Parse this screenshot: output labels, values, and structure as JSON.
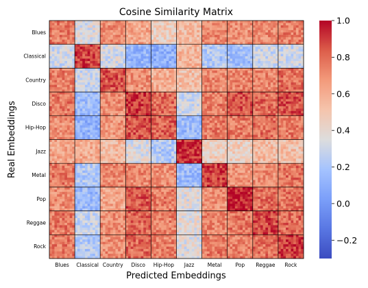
{
  "chart_data": {
    "type": "heatmap",
    "title": "Cosine Similarity Matrix",
    "xlabel": "Predicted Embeddings",
    "ylabel": "Real Embeddings",
    "x_categories": [
      "Blues",
      "Classical",
      "Country",
      "Disco",
      "Hip-Hop",
      "Jazz",
      "Metal",
      "Pop",
      "Reggae",
      "Rock"
    ],
    "y_categories": [
      "Blues",
      "Classical",
      "Country",
      "Disco",
      "Hip-Hop",
      "Jazz",
      "Metal",
      "Pop",
      "Reggae",
      "Rock"
    ],
    "cells_per_block": 10,
    "block_mean_values": [
      [
        0.75,
        0.35,
        0.7,
        0.62,
        0.45,
        0.55,
        0.72,
        0.7,
        0.72,
        0.74
      ],
      [
        0.3,
        0.88,
        0.32,
        0.12,
        0.1,
        0.58,
        0.22,
        0.18,
        0.3,
        0.3
      ],
      [
        0.74,
        0.3,
        0.84,
        0.7,
        0.6,
        0.52,
        0.72,
        0.72,
        0.72,
        0.78
      ],
      [
        0.76,
        0.15,
        0.7,
        0.9,
        0.8,
        0.3,
        0.75,
        0.85,
        0.8,
        0.85
      ],
      [
        0.7,
        0.12,
        0.68,
        0.84,
        0.82,
        0.15,
        0.75,
        0.75,
        0.78,
        0.75
      ],
      [
        0.62,
        0.6,
        0.55,
        0.35,
        0.22,
        0.92,
        0.45,
        0.45,
        0.55,
        0.52
      ],
      [
        0.76,
        0.22,
        0.72,
        0.72,
        0.7,
        0.15,
        0.9,
        0.68,
        0.7,
        0.78
      ],
      [
        0.7,
        0.15,
        0.62,
        0.84,
        0.75,
        0.35,
        0.7,
        0.95,
        0.78,
        0.78
      ],
      [
        0.76,
        0.28,
        0.7,
        0.8,
        0.74,
        0.38,
        0.72,
        0.76,
        0.88,
        0.8
      ],
      [
        0.76,
        0.22,
        0.7,
        0.8,
        0.74,
        0.35,
        0.76,
        0.74,
        0.78,
        0.9
      ]
    ],
    "colorbar": {
      "min": -0.3,
      "max": 1.0,
      "ticks": [
        "−0.2",
        "0.0",
        "0.2",
        "0.4",
        "0.6",
        "0.8",
        "1.0"
      ],
      "colormap": "coolwarm",
      "low_color": "#3b4cc0",
      "mid_color": "#dddddd",
      "high_color": "#b40426"
    },
    "grid": false
  }
}
